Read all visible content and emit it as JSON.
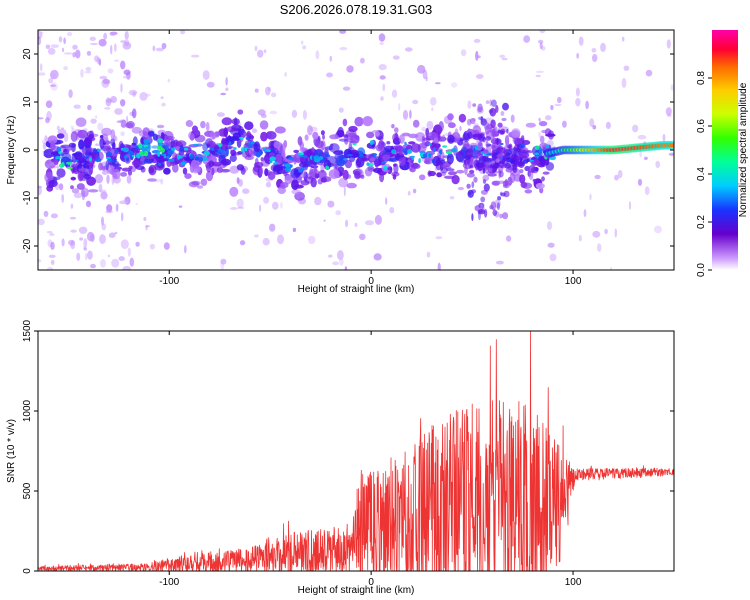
{
  "title": "S206.2026.078.19.31.G03",
  "chart_data": [
    {
      "type": "heatmap",
      "name": "spectrogram",
      "xlabel": "Height of straight line (km)",
      "ylabel": "Frequency (Hz)",
      "xlim": [
        -165,
        150
      ],
      "ylim": [
        -25,
        25
      ],
      "xticks": [
        -100,
        0,
        100
      ],
      "yticks": [
        -20,
        -10,
        0,
        10,
        20
      ],
      "colorbar": {
        "label": "Normalized spectral amplitude",
        "range": [
          0.0,
          1.0
        ],
        "ticks": [
          0.0,
          0.2,
          0.4,
          0.6,
          0.8
        ],
        "tick_labels": [
          "0.0",
          "0.2",
          "0.4",
          "0.6",
          "0.8"
        ]
      },
      "ridge": [
        {
          "x": -155,
          "f": -2,
          "amp": 0.45
        },
        {
          "x": -125,
          "f": -1,
          "amp": 0.35
        },
        {
          "x": -110,
          "f": 0,
          "amp": 0.45
        },
        {
          "x": -88,
          "f": -1,
          "amp": 0.35
        },
        {
          "x": -65,
          "f": 1,
          "amp": 0.4
        },
        {
          "x": -40,
          "f": -3,
          "amp": 0.35
        },
        {
          "x": -15,
          "f": -1,
          "amp": 0.4
        },
        {
          "x": 15,
          "f": -1,
          "amp": 0.35
        },
        {
          "x": 40,
          "f": 0,
          "amp": 0.4
        },
        {
          "x": 75,
          "f": -2,
          "amp": 0.3
        },
        {
          "x": 95,
          "f": 0,
          "amp": 0.55
        },
        {
          "x": 120,
          "f": 0,
          "amp": 0.95
        },
        {
          "x": 145,
          "f": 1,
          "amp": 0.85
        }
      ]
    },
    {
      "type": "line",
      "name": "snr",
      "xlabel": "Height of straight line (km)",
      "ylabel": "SNR (10 * v/v)",
      "xlim": [
        -165,
        150
      ],
      "ylim": [
        0,
        1500
      ],
      "xticks": [
        -100,
        0,
        100
      ],
      "yticks": [
        0,
        500,
        1000,
        1500
      ],
      "color": "#ee3333",
      "envelope": [
        {
          "x": -165,
          "base": 15,
          "amp": 15
        },
        {
          "x": -110,
          "base": 25,
          "amp": 25
        },
        {
          "x": -100,
          "base": 35,
          "amp": 45
        },
        {
          "x": -60,
          "base": 70,
          "amp": 80
        },
        {
          "x": -40,
          "base": 110,
          "amp": 130
        },
        {
          "x": -10,
          "base": 140,
          "amp": 160
        },
        {
          "x": -5,
          "base": 260,
          "amp": 350
        },
        {
          "x": 20,
          "base": 320,
          "amp": 500
        },
        {
          "x": 40,
          "base": 380,
          "amp": 650
        },
        {
          "x": 60,
          "base": 380,
          "amp": 700
        },
        {
          "x": 80,
          "base": 380,
          "amp": 650
        },
        {
          "x": 95,
          "base": 430,
          "amp": 350
        },
        {
          "x": 101,
          "base": 600,
          "amp": 40
        },
        {
          "x": 150,
          "base": 620,
          "amp": 25
        }
      ],
      "peak": {
        "x": 79,
        "y": 1500
      }
    }
  ]
}
